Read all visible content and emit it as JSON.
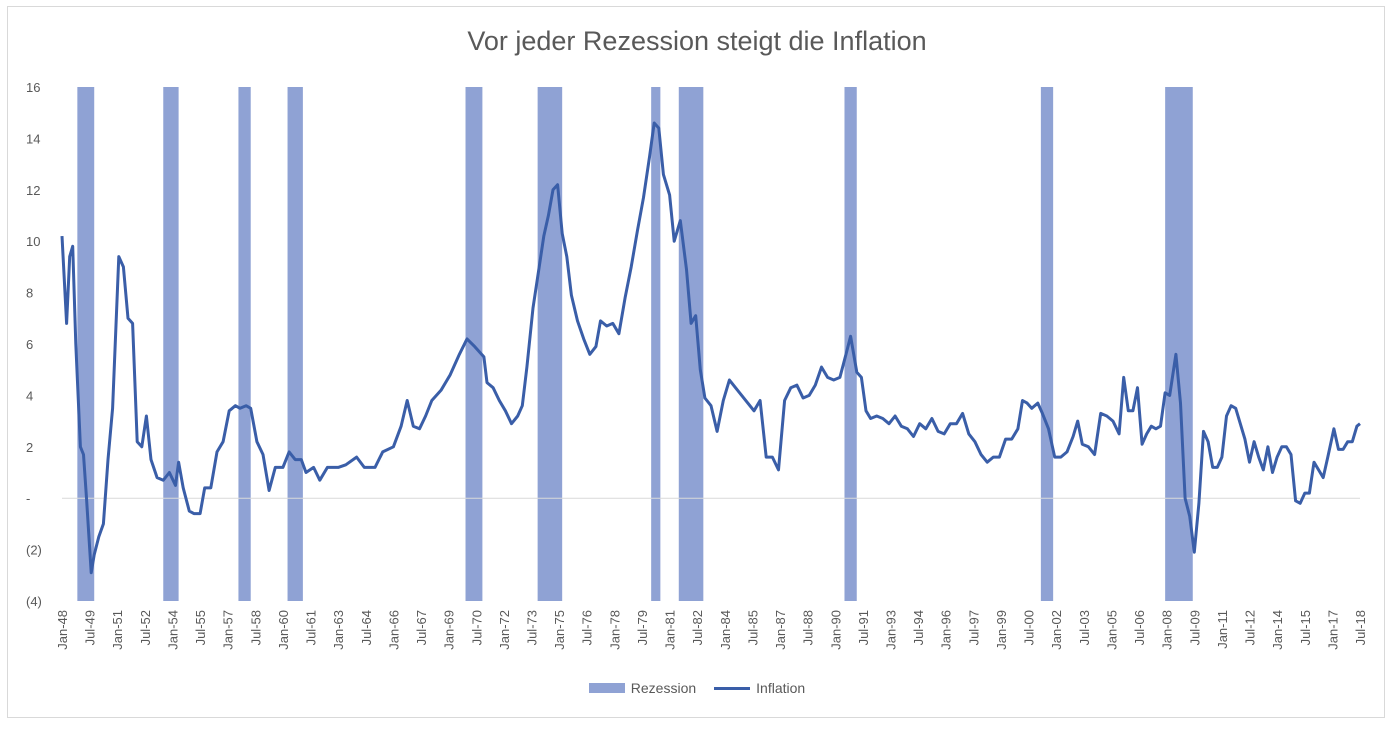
{
  "chart_data": {
    "type": "line",
    "title": "Vor jeder Rezession steigt die Inflation",
    "xlabel": "",
    "ylabel": "",
    "x_start": "Jan-48",
    "x_end": "Jul-18",
    "ylim": [
      -4,
      16
    ],
    "y_ticks": [
      16,
      14,
      12,
      10,
      8,
      6,
      4,
      2,
      0,
      -2,
      -4
    ],
    "y_tick_labels": [
      "16",
      "14",
      "12",
      "10",
      "8",
      "6",
      "4",
      "2",
      "-",
      "(2)",
      "(4)"
    ],
    "x_tick_labels": [
      "Jan-48",
      "Jul-49",
      "Jan-51",
      "Jul-52",
      "Jan-54",
      "Jul-55",
      "Jan-57",
      "Jul-58",
      "Jan-60",
      "Jul-61",
      "Jan-63",
      "Jul-64",
      "Jan-66",
      "Jul-67",
      "Jan-69",
      "Jul-70",
      "Jan-72",
      "Jul-73",
      "Jan-75",
      "Jul-76",
      "Jan-78",
      "Jul-79",
      "Jan-81",
      "Jul-82",
      "Jan-84",
      "Jul-85",
      "Jan-87",
      "Jul-88",
      "Jan-90",
      "Jul-91",
      "Jan-93",
      "Jul-94",
      "Jan-96",
      "Jul-97",
      "Jan-99",
      "Jul-00",
      "Jan-02",
      "Jul-03",
      "Jan-05",
      "Jul-06",
      "Jan-08",
      "Jul-09",
      "Jan-11",
      "Jul-12",
      "Jan-14",
      "Jul-15",
      "Jan-17",
      "Jul-18"
    ],
    "grid": false,
    "legend_position": "bottom",
    "series": [
      {
        "name": "Rezession",
        "type": "band",
        "color": "#8fa2d4",
        "periods": [
          [
            "1948-11",
            "1949-10"
          ],
          [
            "1953-07",
            "1954-05"
          ],
          [
            "1957-08",
            "1958-04"
          ],
          [
            "1960-04",
            "1961-02"
          ],
          [
            "1969-12",
            "1970-11"
          ],
          [
            "1973-11",
            "1975-03"
          ],
          [
            "1980-01",
            "1980-07"
          ],
          [
            "1981-07",
            "1982-11"
          ],
          [
            "1990-07",
            "1991-03"
          ],
          [
            "2001-03",
            "2001-11"
          ],
          [
            "2007-12",
            "2009-06"
          ]
        ]
      },
      {
        "name": "Inflation",
        "type": "line",
        "color": "#3a5ea8",
        "points": [
          [
            "1948-01",
            10.2
          ],
          [
            "1948-04",
            6.8
          ],
          [
            "1948-06",
            9.4
          ],
          [
            "1948-08",
            9.8
          ],
          [
            "1948-10",
            6.0
          ],
          [
            "1949-01",
            2.0
          ],
          [
            "1949-03",
            1.7
          ],
          [
            "1949-05",
            0.0
          ],
          [
            "1949-08",
            -2.9
          ],
          [
            "1949-10",
            -2.2
          ],
          [
            "1950-01",
            -1.5
          ],
          [
            "1950-04",
            -1.0
          ],
          [
            "1950-07",
            1.5
          ],
          [
            "1950-10",
            3.5
          ],
          [
            "1951-02",
            9.4
          ],
          [
            "1951-05",
            9.0
          ],
          [
            "1951-08",
            7.0
          ],
          [
            "1951-11",
            6.8
          ],
          [
            "1952-02",
            2.2
          ],
          [
            "1952-05",
            2.0
          ],
          [
            "1952-08",
            3.2
          ],
          [
            "1952-11",
            1.5
          ],
          [
            "1953-03",
            0.8
          ],
          [
            "1953-07",
            0.7
          ],
          [
            "1953-11",
            1.0
          ],
          [
            "1954-03",
            0.5
          ],
          [
            "1954-05",
            1.4
          ],
          [
            "1954-08",
            0.4
          ],
          [
            "1954-12",
            -0.5
          ],
          [
            "1955-03",
            -0.6
          ],
          [
            "1955-07",
            -0.6
          ],
          [
            "1955-10",
            0.4
          ],
          [
            "1956-02",
            0.4
          ],
          [
            "1956-06",
            1.8
          ],
          [
            "1956-10",
            2.2
          ],
          [
            "1957-02",
            3.4
          ],
          [
            "1957-06",
            3.6
          ],
          [
            "1957-09",
            3.5
          ],
          [
            "1958-01",
            3.6
          ],
          [
            "1958-04",
            3.5
          ],
          [
            "1958-08",
            2.2
          ],
          [
            "1958-12",
            1.7
          ],
          [
            "1959-04",
            0.3
          ],
          [
            "1959-08",
            1.2
          ],
          [
            "1960-01",
            1.2
          ],
          [
            "1960-05",
            1.8
          ],
          [
            "1960-09",
            1.5
          ],
          [
            "1961-01",
            1.5
          ],
          [
            "1961-04",
            1.0
          ],
          [
            "1961-09",
            1.2
          ],
          [
            "1962-01",
            0.7
          ],
          [
            "1962-06",
            1.2
          ],
          [
            "1963-01",
            1.2
          ],
          [
            "1963-06",
            1.3
          ],
          [
            "1964-01",
            1.6
          ],
          [
            "1964-06",
            1.2
          ],
          [
            "1965-01",
            1.2
          ],
          [
            "1965-06",
            1.8
          ],
          [
            "1966-01",
            2.0
          ],
          [
            "1966-06",
            2.8
          ],
          [
            "1966-10",
            3.8
          ],
          [
            "1967-02",
            2.8
          ],
          [
            "1967-06",
            2.7
          ],
          [
            "1967-10",
            3.2
          ],
          [
            "1968-02",
            3.8
          ],
          [
            "1968-08",
            4.2
          ],
          [
            "1969-02",
            4.8
          ],
          [
            "1969-08",
            5.6
          ],
          [
            "1970-01",
            6.2
          ],
          [
            "1970-06",
            5.9
          ],
          [
            "1970-12",
            5.5
          ],
          [
            "1971-02",
            4.5
          ],
          [
            "1971-06",
            4.3
          ],
          [
            "1971-10",
            3.8
          ],
          [
            "1972-02",
            3.4
          ],
          [
            "1972-06",
            2.9
          ],
          [
            "1972-10",
            3.2
          ],
          [
            "1973-01",
            3.6
          ],
          [
            "1973-04",
            5.1
          ],
          [
            "1973-08",
            7.4
          ],
          [
            "1973-12",
            9.0
          ],
          [
            "1974-03",
            10.2
          ],
          [
            "1974-06",
            11.0
          ],
          [
            "1974-09",
            12.0
          ],
          [
            "1974-12",
            12.2
          ],
          [
            "1975-03",
            10.3
          ],
          [
            "1975-06",
            9.4
          ],
          [
            "1975-09",
            7.9
          ],
          [
            "1976-01",
            6.9
          ],
          [
            "1976-05",
            6.2
          ],
          [
            "1976-09",
            5.6
          ],
          [
            "1977-01",
            5.9
          ],
          [
            "1977-04",
            6.9
          ],
          [
            "1977-08",
            6.7
          ],
          [
            "1977-12",
            6.8
          ],
          [
            "1978-04",
            6.4
          ],
          [
            "1978-08",
            7.8
          ],
          [
            "1978-12",
            9.0
          ],
          [
            "1979-04",
            10.4
          ],
          [
            "1979-08",
            11.7
          ],
          [
            "1979-12",
            13.3
          ],
          [
            "1980-03",
            14.6
          ],
          [
            "1980-06",
            14.4
          ],
          [
            "1980-09",
            12.6
          ],
          [
            "1981-01",
            11.8
          ],
          [
            "1981-04",
            10.0
          ],
          [
            "1981-08",
            10.8
          ],
          [
            "1981-12",
            8.9
          ],
          [
            "1982-03",
            6.8
          ],
          [
            "1982-06",
            7.1
          ],
          [
            "1982-09",
            5.0
          ],
          [
            "1982-12",
            3.9
          ],
          [
            "1983-04",
            3.6
          ],
          [
            "1983-08",
            2.6
          ],
          [
            "1983-12",
            3.8
          ],
          [
            "1984-04",
            4.6
          ],
          [
            "1984-08",
            4.3
          ],
          [
            "1984-12",
            4.0
          ],
          [
            "1985-04",
            3.7
          ],
          [
            "1985-08",
            3.4
          ],
          [
            "1985-12",
            3.8
          ],
          [
            "1986-04",
            1.6
          ],
          [
            "1986-08",
            1.6
          ],
          [
            "1986-12",
            1.1
          ],
          [
            "1987-04",
            3.8
          ],
          [
            "1987-08",
            4.3
          ],
          [
            "1987-12",
            4.4
          ],
          [
            "1988-04",
            3.9
          ],
          [
            "1988-08",
            4.0
          ],
          [
            "1988-12",
            4.4
          ],
          [
            "1989-04",
            5.1
          ],
          [
            "1989-08",
            4.7
          ],
          [
            "1989-12",
            4.6
          ],
          [
            "1990-04",
            4.7
          ],
          [
            "1990-08",
            5.6
          ],
          [
            "1990-11",
            6.3
          ],
          [
            "1991-03",
            4.9
          ],
          [
            "1991-06",
            4.7
          ],
          [
            "1991-09",
            3.4
          ],
          [
            "1991-12",
            3.1
          ],
          [
            "1992-04",
            3.2
          ],
          [
            "1992-08",
            3.1
          ],
          [
            "1992-12",
            2.9
          ],
          [
            "1993-04",
            3.2
          ],
          [
            "1993-08",
            2.8
          ],
          [
            "1993-12",
            2.7
          ],
          [
            "1994-04",
            2.4
          ],
          [
            "1994-08",
            2.9
          ],
          [
            "1994-12",
            2.7
          ],
          [
            "1995-04",
            3.1
          ],
          [
            "1995-08",
            2.6
          ],
          [
            "1995-12",
            2.5
          ],
          [
            "1996-04",
            2.9
          ],
          [
            "1996-08",
            2.9
          ],
          [
            "1996-12",
            3.3
          ],
          [
            "1997-04",
            2.5
          ],
          [
            "1997-08",
            2.2
          ],
          [
            "1997-12",
            1.7
          ],
          [
            "1998-04",
            1.4
          ],
          [
            "1998-08",
            1.6
          ],
          [
            "1998-12",
            1.6
          ],
          [
            "1999-04",
            2.3
          ],
          [
            "1999-08",
            2.3
          ],
          [
            "1999-12",
            2.7
          ],
          [
            "2000-03",
            3.8
          ],
          [
            "2000-06",
            3.7
          ],
          [
            "2000-09",
            3.5
          ],
          [
            "2001-01",
            3.7
          ],
          [
            "2001-04",
            3.3
          ],
          [
            "2001-08",
            2.7
          ],
          [
            "2001-12",
            1.6
          ],
          [
            "2002-04",
            1.6
          ],
          [
            "2002-08",
            1.8
          ],
          [
            "2002-12",
            2.4
          ],
          [
            "2003-03",
            3.0
          ],
          [
            "2003-06",
            2.1
          ],
          [
            "2003-10",
            2.0
          ],
          [
            "2004-02",
            1.7
          ],
          [
            "2004-06",
            3.3
          ],
          [
            "2004-10",
            3.2
          ],
          [
            "2005-02",
            3.0
          ],
          [
            "2005-06",
            2.5
          ],
          [
            "2005-09",
            4.7
          ],
          [
            "2005-12",
            3.4
          ],
          [
            "2006-03",
            3.4
          ],
          [
            "2006-06",
            4.3
          ],
          [
            "2006-09",
            2.1
          ],
          [
            "2006-12",
            2.5
          ],
          [
            "2007-03",
            2.8
          ],
          [
            "2007-06",
            2.7
          ],
          [
            "2007-09",
            2.8
          ],
          [
            "2007-12",
            4.1
          ],
          [
            "2008-03",
            4.0
          ],
          [
            "2008-07",
            5.6
          ],
          [
            "2008-10",
            3.7
          ],
          [
            "2009-01",
            0.0
          ],
          [
            "2009-04",
            -0.7
          ],
          [
            "2009-07",
            -2.1
          ],
          [
            "2009-10",
            -0.2
          ],
          [
            "2010-01",
            2.6
          ],
          [
            "2010-04",
            2.2
          ],
          [
            "2010-07",
            1.2
          ],
          [
            "2010-10",
            1.2
          ],
          [
            "2011-01",
            1.6
          ],
          [
            "2011-04",
            3.2
          ],
          [
            "2011-07",
            3.6
          ],
          [
            "2011-10",
            3.5
          ],
          [
            "2012-01",
            2.9
          ],
          [
            "2012-04",
            2.3
          ],
          [
            "2012-07",
            1.4
          ],
          [
            "2012-10",
            2.2
          ],
          [
            "2013-01",
            1.6
          ],
          [
            "2013-04",
            1.1
          ],
          [
            "2013-07",
            2.0
          ],
          [
            "2013-10",
            1.0
          ],
          [
            "2014-01",
            1.6
          ],
          [
            "2014-04",
            2.0
          ],
          [
            "2014-07",
            2.0
          ],
          [
            "2014-10",
            1.7
          ],
          [
            "2015-01",
            -0.1
          ],
          [
            "2015-04",
            -0.2
          ],
          [
            "2015-07",
            0.2
          ],
          [
            "2015-10",
            0.2
          ],
          [
            "2016-01",
            1.4
          ],
          [
            "2016-04",
            1.1
          ],
          [
            "2016-07",
            0.8
          ],
          [
            "2016-10",
            1.6
          ],
          [
            "2017-02",
            2.7
          ],
          [
            "2017-05",
            1.9
          ],
          [
            "2017-08",
            1.9
          ],
          [
            "2017-11",
            2.2
          ],
          [
            "2018-02",
            2.2
          ],
          [
            "2018-05",
            2.8
          ],
          [
            "2018-07",
            2.9
          ]
        ]
      }
    ]
  },
  "legend": {
    "recession_label": "Rezession",
    "inflation_label": "Inflation"
  },
  "colors": {
    "recession": "#8fa2d4",
    "inflation": "#3a5ea8",
    "text": "#595959",
    "zero_line": "#d9d9d9",
    "border": "#d9d9d9"
  }
}
